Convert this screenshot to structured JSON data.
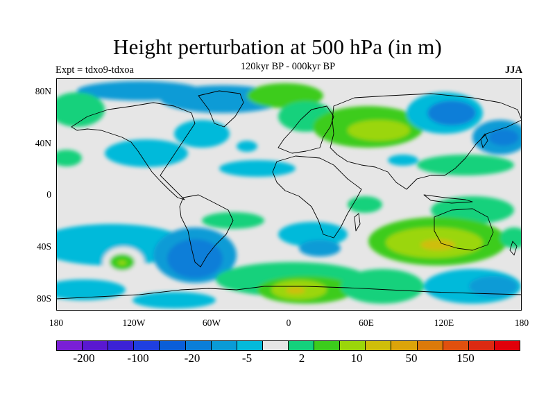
{
  "title": "Height perturbation at 500 hPa (in m)",
  "subtitle": "120kyr BP - 000kyr BP",
  "experiment_label": "Expt = tdxo9-tdxoa",
  "season_label": "JJA",
  "lat_labels": [
    "80N",
    "40N",
    "0",
    "40S",
    "80S"
  ],
  "lon_labels": [
    "180",
    "120W",
    "60W",
    "0",
    "60E",
    "120E",
    "180"
  ],
  "colorbar": {
    "colors": [
      "#7a1fd6",
      "#5a18d0",
      "#3c22d6",
      "#1f3fe0",
      "#0a5ed8",
      "#0b7ed8",
      "#0a9bd6",
      "#04bada",
      "#e6e6e6",
      "#14d17c",
      "#3ccc1c",
      "#9bd60a",
      "#cfbe0a",
      "#dca40a",
      "#dc7a0a",
      "#e0500e",
      "#dc2a12",
      "#e0000a"
    ],
    "labels": [
      "-200",
      "-100",
      "-20",
      "-5",
      "2",
      "10",
      "50",
      "150"
    ]
  },
  "colors": {
    "background": "#e6e6e6",
    "coastline": "#000000"
  }
}
